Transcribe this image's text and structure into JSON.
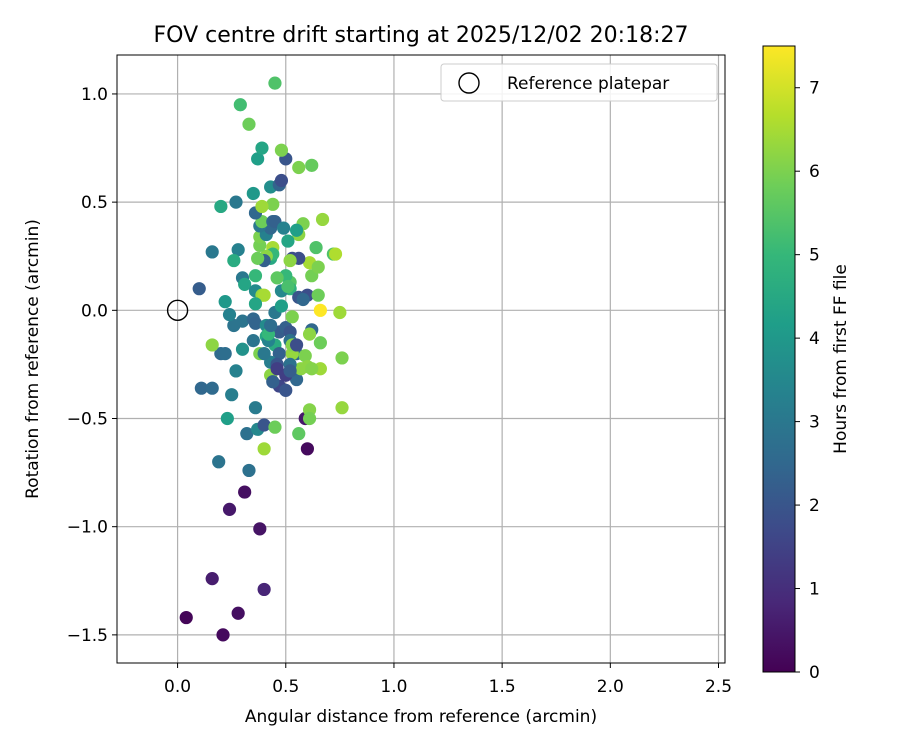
{
  "chart_data": {
    "type": "scatter",
    "title": "FOV centre drift starting at 2025/12/02 20:18:27",
    "xlabel": "Angular distance from reference (arcmin)",
    "ylabel": "Rotation from reference (arcmin)",
    "xlim": [
      -0.28,
      2.53
    ],
    "ylim": [
      -1.63,
      1.18
    ],
    "xticks": [
      0.0,
      0.5,
      1.0,
      1.5,
      2.0,
      2.5
    ],
    "xtick_labels": [
      "0.0",
      "0.5",
      "1.0",
      "1.5",
      "2.0",
      "2.5"
    ],
    "yticks": [
      -1.5,
      -1.0,
      -0.5,
      0.0,
      0.5,
      1.0
    ],
    "ytick_labels": [
      "−1.5",
      "−1.0",
      "−0.5",
      "0.0",
      "0.5",
      "1.0"
    ],
    "grid": true,
    "legend": {
      "position": "top-right",
      "entries": [
        "Reference platepar"
      ]
    },
    "reference_point": {
      "x": 0.0,
      "y": 0.0
    },
    "colorbar": {
      "label": "Hours from first FF file",
      "range": [
        0,
        7.5
      ],
      "ticks": [
        0,
        1,
        2,
        3,
        4,
        5,
        6,
        7
      ],
      "tick_labels": [
        "0",
        "1",
        "2",
        "3",
        "4",
        "5",
        "6",
        "7"
      ],
      "colormap": "viridis",
      "colors": [
        "#440154",
        "#482878",
        "#3e4989",
        "#31688e",
        "#26828e",
        "#1f9e89",
        "#35b779",
        "#6ece58",
        "#b5de2b",
        "#fde725"
      ]
    },
    "points": [
      [
        0.04,
        -1.42,
        0.1
      ],
      [
        0.21,
        -1.5,
        0.2
      ],
      [
        0.28,
        -1.4,
        0.3
      ],
      [
        0.16,
        -1.24,
        0.6
      ],
      [
        0.4,
        -1.29,
        0.8
      ],
      [
        0.38,
        -1.01,
        0.4
      ],
      [
        0.24,
        -0.92,
        0.5
      ],
      [
        0.31,
        -0.84,
        0.3
      ],
      [
        0.6,
        -0.64,
        0.2
      ],
      [
        0.59,
        -0.5,
        0.5
      ],
      [
        0.33,
        -0.74,
        2.8
      ],
      [
        0.19,
        -0.7,
        2.9
      ],
      [
        0.32,
        -0.57,
        2.8
      ],
      [
        0.37,
        -0.55,
        3.5
      ],
      [
        0.4,
        -0.53,
        2.0
      ],
      [
        0.23,
        -0.5,
        4.2
      ],
      [
        0.36,
        -0.45,
        3.1
      ],
      [
        0.25,
        -0.39,
        3.2
      ],
      [
        0.11,
        -0.36,
        2.5
      ],
      [
        0.16,
        -0.36,
        2.6
      ],
      [
        0.27,
        -0.28,
        3.3
      ],
      [
        0.2,
        -0.2,
        2.6
      ],
      [
        0.22,
        -0.2,
        2.7
      ],
      [
        0.3,
        -0.18,
        3.8
      ],
      [
        0.16,
        -0.16,
        6.2
      ],
      [
        0.35,
        -0.14,
        2.9
      ],
      [
        0.41,
        -0.12,
        4.5
      ],
      [
        0.45,
        -0.16,
        4.6
      ],
      [
        0.26,
        -0.07,
        2.9
      ],
      [
        0.3,
        -0.05,
        2.9
      ],
      [
        0.24,
        -0.02,
        3.3
      ],
      [
        0.22,
        0.04,
        4.0
      ],
      [
        0.35,
        -0.04,
        2.5
      ],
      [
        0.36,
        -0.06,
        2.4
      ],
      [
        0.47,
        -0.1,
        2.2
      ],
      [
        0.5,
        -0.08,
        2.3
      ],
      [
        0.52,
        -0.1,
        2.0
      ],
      [
        0.41,
        -0.07,
        3.6
      ],
      [
        0.45,
        -0.01,
        3.0
      ],
      [
        0.48,
        0.02,
        4.2
      ],
      [
        0.53,
        -0.03,
        6.0
      ],
      [
        0.55,
        -0.2,
        2.5
      ],
      [
        0.52,
        -0.14,
        2.8
      ],
      [
        0.47,
        -0.2,
        2.3
      ],
      [
        0.43,
        -0.24,
        3.2
      ],
      [
        0.43,
        -0.3,
        6.2
      ],
      [
        0.47,
        -0.35,
        1.6
      ],
      [
        0.5,
        -0.37,
        2.0
      ],
      [
        0.55,
        -0.32,
        2.5
      ],
      [
        0.57,
        -0.27,
        6.2
      ],
      [
        0.53,
        -0.2,
        6.3
      ],
      [
        0.53,
        -0.16,
        6.1
      ],
      [
        0.59,
        -0.21,
        6.0
      ],
      [
        0.6,
        -0.26,
        6.2
      ],
      [
        0.66,
        -0.27,
        6.4
      ],
      [
        0.62,
        -0.27,
        6.1
      ],
      [
        0.66,
        -0.15,
        5.8
      ],
      [
        0.76,
        -0.22,
        6.0
      ],
      [
        0.62,
        -0.09,
        2.5
      ],
      [
        0.75,
        -0.01,
        6.4
      ],
      [
        0.66,
        0.0,
        7.5
      ],
      [
        0.6,
        0.07,
        1.8
      ],
      [
        0.65,
        0.07,
        5.8
      ],
      [
        0.62,
        0.16,
        5.9
      ],
      [
        0.61,
        0.22,
        6.5
      ],
      [
        0.65,
        0.2,
        6.0
      ],
      [
        0.72,
        0.26,
        5.4
      ],
      [
        0.73,
        0.26,
        6.6
      ],
      [
        0.67,
        0.42,
        6.3
      ],
      [
        0.64,
        0.29,
        5.4
      ],
      [
        0.58,
        0.4,
        6.0
      ],
      [
        0.56,
        0.35,
        6.2
      ],
      [
        0.56,
        0.24,
        1.8
      ],
      [
        0.53,
        0.24,
        1.8
      ],
      [
        0.52,
        0.23,
        6.2
      ],
      [
        0.52,
        0.13,
        5.5
      ],
      [
        0.52,
        0.1,
        4.8
      ],
      [
        0.5,
        0.16,
        5.0
      ],
      [
        0.46,
        0.15,
        5.6
      ],
      [
        0.44,
        0.29,
        6.5
      ],
      [
        0.43,
        0.24,
        4.5
      ],
      [
        0.44,
        0.26,
        5.0
      ],
      [
        0.41,
        0.25,
        6.2
      ],
      [
        0.4,
        0.23,
        2.3
      ],
      [
        0.37,
        0.24,
        5.8
      ],
      [
        0.38,
        0.3,
        5.9
      ],
      [
        0.38,
        0.34,
        6.0
      ],
      [
        0.41,
        0.35,
        3.3
      ],
      [
        0.43,
        0.38,
        2.5
      ],
      [
        0.38,
        0.39,
        3.0
      ],
      [
        0.39,
        0.41,
        5.8
      ],
      [
        0.44,
        0.41,
        2.5
      ],
      [
        0.45,
        0.41,
        2.3
      ],
      [
        0.49,
        0.38,
        3.3
      ],
      [
        0.51,
        0.32,
        4.4
      ],
      [
        0.55,
        0.37,
        4.2
      ],
      [
        0.36,
        0.45,
        2.5
      ],
      [
        0.44,
        0.49,
        6.0
      ],
      [
        0.39,
        0.48,
        6.4
      ],
      [
        0.35,
        0.54,
        4.0
      ],
      [
        0.27,
        0.5,
        3.0
      ],
      [
        0.2,
        0.48,
        4.5
      ],
      [
        0.43,
        0.57,
        3.7
      ],
      [
        0.47,
        0.58,
        2.4
      ],
      [
        0.48,
        0.6,
        1.8
      ],
      [
        0.5,
        0.7,
        2.0
      ],
      [
        0.56,
        0.66,
        6.0
      ],
      [
        0.62,
        0.67,
        5.7
      ],
      [
        0.48,
        0.74,
        6.0
      ],
      [
        0.37,
        0.7,
        4.2
      ],
      [
        0.39,
        0.75,
        4.4
      ],
      [
        0.33,
        0.86,
        5.8
      ],
      [
        0.29,
        0.95,
        5.2
      ],
      [
        0.45,
        1.05,
        5.4
      ],
      [
        0.16,
        0.27,
        3.0
      ],
      [
        0.28,
        0.28,
        3.3
      ],
      [
        0.26,
        0.23,
        4.6
      ],
      [
        0.1,
        0.1,
        2.2
      ],
      [
        0.3,
        0.15,
        3.0
      ],
      [
        0.31,
        0.12,
        4.4
      ],
      [
        0.36,
        0.16,
        5.0
      ],
      [
        0.36,
        0.09,
        3.6
      ],
      [
        0.39,
        0.07,
        6.3
      ],
      [
        0.4,
        0.07,
        6.5
      ],
      [
        0.36,
        0.03,
        4.4
      ],
      [
        0.48,
        0.09,
        3.5
      ],
      [
        0.51,
        0.11,
        5.3
      ],
      [
        0.56,
        0.06,
        2.0
      ],
      [
        0.58,
        0.05,
        2.5
      ],
      [
        0.61,
        -0.11,
        6.2
      ],
      [
        0.55,
        -0.16,
        1.8
      ],
      [
        0.46,
        -0.25,
        2.0
      ],
      [
        0.46,
        -0.27,
        1.4
      ],
      [
        0.5,
        -0.3,
        1.4
      ],
      [
        0.52,
        -0.25,
        2.8
      ],
      [
        0.52,
        -0.28,
        2.2
      ],
      [
        0.44,
        -0.33,
        2.3
      ],
      [
        0.42,
        -0.14,
        3.4
      ],
      [
        0.38,
        -0.2,
        6.0
      ],
      [
        0.45,
        -0.54,
        5.8
      ],
      [
        0.56,
        -0.57,
        5.6
      ],
      [
        0.61,
        -0.46,
        6.1
      ],
      [
        0.61,
        -0.5,
        5.9
      ],
      [
        0.76,
        -0.45,
        6.3
      ],
      [
        0.4,
        -0.64,
        6.4
      ],
      [
        0.4,
        -0.2,
        3.0
      ],
      [
        0.42,
        -0.11,
        5.0
      ],
      [
        0.43,
        -0.07,
        2.7
      ]
    ]
  }
}
